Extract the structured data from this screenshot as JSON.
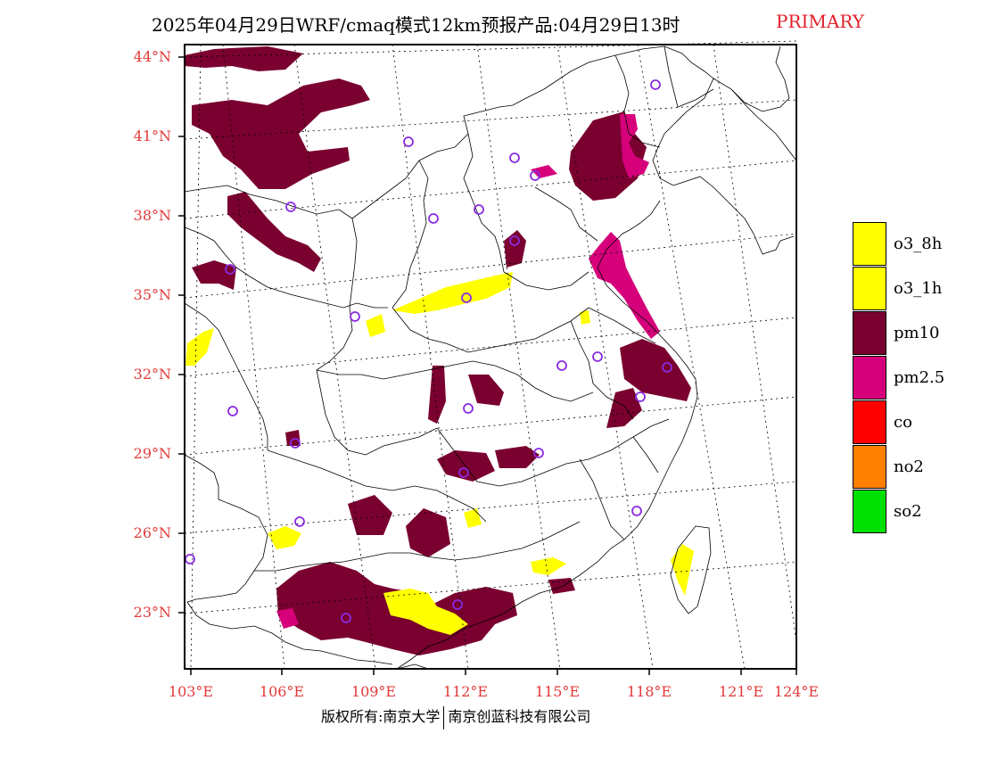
{
  "title": "2025年04月29日WRF/cmaq模式12km预报产品:04月29日13时",
  "tag": "PRIMARY",
  "lat_labels": [
    "44°N",
    "41°N",
    "38°N",
    "35°N",
    "32°N",
    "29°N",
    "26°N",
    "23°N"
  ],
  "lon_labels": [
    "103°E",
    "106°E",
    "109°E",
    "112°E",
    "115°E",
    "118°E",
    "121°E",
    "124°E"
  ],
  "legend": [
    {
      "label": "o3_8h",
      "color": "#ffff00"
    },
    {
      "label": "o3_1h",
      "color": "#ffff00"
    },
    {
      "label": "pm10",
      "color": "#7a0030"
    },
    {
      "label": "pm2.5",
      "color": "#d6007a"
    },
    {
      "label": "co",
      "color": "#ff0000"
    },
    {
      "label": "no2",
      "color": "#ff7f00"
    },
    {
      "label": "so2",
      "color": "#00e000"
    }
  ],
  "footer": {
    "left": "版权所有:南京大学",
    "right": "南京创蓝科技有限公司"
  }
}
